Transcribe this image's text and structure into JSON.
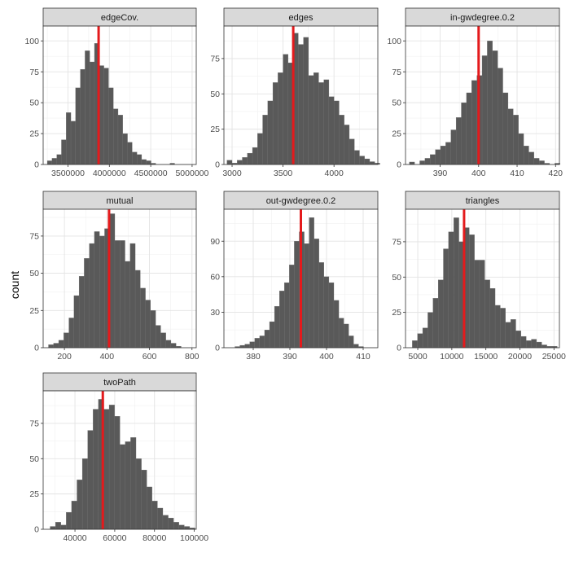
{
  "chart_data": {
    "type": "histogram-facets",
    "ylabel": "count",
    "bar_color": "#595959",
    "ref_line_color": "#e41a1c",
    "strip_fill": "#d9d9d9",
    "panels": [
      {
        "title": "edgeCov.",
        "xlim": [
          3200000,
          5050000
        ],
        "ylim": [
          0,
          112
        ],
        "xticks": [
          3500000,
          4000000,
          4500000,
          5000000
        ],
        "xtick_labels": [
          "3500000",
          "4000000",
          "4500000",
          "5000000"
        ],
        "yticks": [
          0,
          25,
          50,
          75,
          100
        ],
        "bins": {
          "start": 3250000,
          "width": 57000,
          "counts": [
            3,
            5,
            8,
            20,
            42,
            35,
            62,
            77,
            92,
            83,
            98,
            80,
            78,
            62,
            45,
            40,
            25,
            18,
            10,
            8,
            4,
            3,
            1,
            0,
            0,
            0,
            1,
            0
          ]
        },
        "ref": 3870000
      },
      {
        "title": "edges",
        "xlim": [
          2920,
          4430
        ],
        "ylim": [
          0,
          98
        ],
        "xticks": [
          3000,
          3500,
          4000
        ],
        "xtick_labels": [
          "3000",
          "3500",
          "4000"
        ],
        "yticks": [
          0,
          25,
          50,
          75
        ],
        "bins": {
          "start": 2950,
          "width": 50,
          "counts": [
            3,
            1,
            3,
            5,
            8,
            12,
            22,
            35,
            45,
            58,
            65,
            78,
            72,
            93,
            85,
            90,
            63,
            65,
            58,
            60,
            48,
            45,
            35,
            28,
            18,
            10,
            6,
            4,
            2,
            1
          ]
        },
        "ref": 3600
      },
      {
        "title": "in-gwdegree.0.2",
        "xlim": [
          381,
          421
        ],
        "ylim": [
          0,
          112
        ],
        "xticks": [
          390,
          400,
          410,
          420
        ],
        "xtick_labels": [
          "390",
          "400",
          "410",
          "420"
        ],
        "yticks": [
          0,
          25,
          50,
          75,
          100
        ],
        "bins": {
          "start": 382,
          "width": 1.35,
          "counts": [
            2,
            0,
            3,
            5,
            8,
            12,
            15,
            18,
            28,
            38,
            50,
            58,
            68,
            72,
            88,
            100,
            92,
            78,
            58,
            45,
            40,
            25,
            15,
            10,
            5,
            3,
            1,
            0,
            1
          ]
        },
        "ref": 400
      },
      {
        "title": "mutual",
        "xlim": [
          100,
          820
        ],
        "ylim": [
          0,
          93
        ],
        "xticks": [
          200,
          400,
          600,
          800
        ],
        "xtick_labels": [
          "200",
          "400",
          "600",
          "800"
        ],
        "yticks": [
          0,
          25,
          50,
          75
        ],
        "bins": {
          "start": 125,
          "width": 24,
          "counts": [
            2,
            3,
            5,
            10,
            20,
            35,
            48,
            60,
            70,
            78,
            75,
            80,
            90,
            72,
            72,
            58,
            70,
            52,
            40,
            32,
            25,
            15,
            10,
            5,
            3,
            1,
            0
          ]
        },
        "ref": 410
      },
      {
        "title": "out-gwdegree.0.2",
        "xlim": [
          372,
          414
        ],
        "ylim": [
          0,
          117
        ],
        "xticks": [
          380,
          390,
          400,
          410
        ],
        "xtick_labels": [
          "380",
          "390",
          "400",
          "410"
        ],
        "yticks": [
          0,
          30,
          60,
          90
        ],
        "bins": {
          "start": 375,
          "width": 1.35,
          "counts": [
            1,
            2,
            3,
            5,
            8,
            10,
            15,
            22,
            35,
            48,
            55,
            70,
            90,
            98,
            88,
            110,
            92,
            72,
            60,
            55,
            40,
            25,
            20,
            10,
            3,
            1,
            0,
            0
          ]
        },
        "ref": 393
      },
      {
        "title": "triangles",
        "xlim": [
          3200,
          25800
        ],
        "ylim": [
          0,
          98
        ],
        "xticks": [
          5000,
          10000,
          15000,
          20000,
          25000
        ],
        "xtick_labels": [
          "5000",
          "10000",
          "15000",
          "20000",
          "25000"
        ],
        "yticks": [
          0,
          25,
          50,
          75
        ],
        "bins": {
          "start": 4200,
          "width": 760,
          "counts": [
            5,
            10,
            14,
            25,
            35,
            48,
            70,
            82,
            92,
            75,
            85,
            80,
            62,
            62,
            48,
            42,
            30,
            28,
            18,
            20,
            12,
            8,
            5,
            6,
            4,
            2,
            1,
            1
          ]
        },
        "ref": 11800
      },
      {
        "title": "twoPath",
        "xlim": [
          24000,
          101000
        ],
        "ylim": [
          0,
          98
        ],
        "xticks": [
          40000,
          60000,
          80000,
          100000
        ],
        "xtick_labels": [
          "40000",
          "60000",
          "80000",
          "100000"
        ],
        "yticks": [
          0,
          25,
          50,
          75
        ],
        "bins": {
          "start": 27500,
          "width": 2700,
          "counts": [
            2,
            5,
            3,
            12,
            20,
            35,
            50,
            70,
            85,
            92,
            85,
            88,
            80,
            60,
            62,
            65,
            50,
            42,
            30,
            20,
            15,
            10,
            8,
            5,
            3,
            2,
            1,
            0
          ]
        },
        "ref": 54000
      }
    ]
  }
}
